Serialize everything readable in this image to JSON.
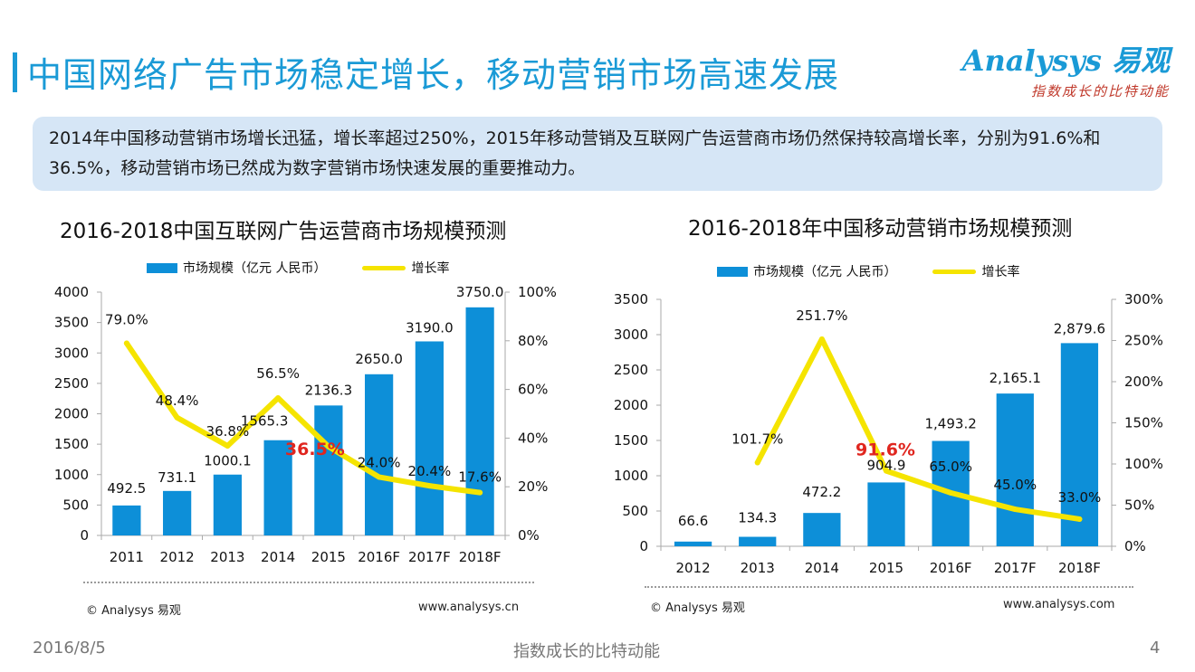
{
  "header": {
    "title": "中国网络广告市场稳定增长，移动营销市场高速发展",
    "logo": "Analysys 易观",
    "slogan": "指数成长的比特动能"
  },
  "summary": "2014年中国移动营销市场增长迅猛，增长率超过250%，2015年移动营销及互联网广告运营商市场仍然保持较高增长率，分别为91.6%和36.5%，移动营销市场已然成为数字营销市场快速发展的重要推动力。",
  "colors": {
    "accent": "#1a9ad6",
    "bar": "#0d8fd8",
    "line": "#f5e400",
    "highlight": "#e0261f"
  },
  "chart_data": [
    {
      "type": "bar",
      "title": "2016-2018中国互联网广告运营商市场规模预测",
      "categories": [
        "2011",
        "2012",
        "2013",
        "2014",
        "2015",
        "2016F",
        "2017F",
        "2018F"
      ],
      "series": [
        {
          "name": "市场规模（亿元 人民币）",
          "type": "bar",
          "axis": "left",
          "values": [
            492.5,
            731.1,
            1000.1,
            1565.3,
            2136.3,
            2650.0,
            3190.0,
            3750.0
          ],
          "labels": [
            "492.5",
            "731.1",
            "1000.1",
            "1565.3",
            "2136.3",
            "2650.0",
            "3190.0",
            "3750.0"
          ]
        },
        {
          "name": "增长率",
          "type": "line",
          "axis": "right",
          "values": [
            79.0,
            48.4,
            36.8,
            56.5,
            36.5,
            24.0,
            20.4,
            17.6
          ],
          "labels": [
            "79.0%",
            "48.4%",
            "36.8%",
            "56.5%",
            "36.5%",
            "24.0%",
            "20.4%",
            "17.6%"
          ],
          "highlight_index": 4
        }
      ],
      "yleft": {
        "min": 0,
        "max": 4000,
        "ticks": [
          "0",
          "500",
          "1000",
          "1500",
          "2000",
          "2500",
          "3000",
          "3500",
          "4000"
        ]
      },
      "yright": {
        "min": 0,
        "max": 100,
        "ticks": [
          "0%",
          "20%",
          "40%",
          "60%",
          "80%",
          "100%"
        ]
      },
      "source_left": "© Analysys 易观",
      "source_right": "www.analysys.cn"
    },
    {
      "type": "bar",
      "title": "2016-2018年中国移动营销市场规模预测",
      "categories": [
        "2012",
        "2013",
        "2014",
        "2015",
        "2016F",
        "2017F",
        "2018F"
      ],
      "series": [
        {
          "name": "市场规模（亿元 人民币）",
          "type": "bar",
          "axis": "left",
          "values": [
            66.6,
            134.3,
            472.2,
            904.9,
            1493.2,
            2165.1,
            2879.6
          ],
          "labels": [
            "66.6",
            "134.3",
            "472.2",
            "904.9",
            "1,493.2",
            "2,165.1",
            "2,879.6"
          ]
        },
        {
          "name": "增长率",
          "type": "line",
          "axis": "right",
          "values": [
            null,
            101.7,
            251.7,
            91.6,
            65.0,
            45.0,
            33.0
          ],
          "labels": [
            "",
            "101.7%",
            "251.7%",
            "91.6%",
            "65.0%",
            "45.0%",
            "33.0%"
          ],
          "highlight_index": 3
        }
      ],
      "yleft": {
        "min": 0,
        "max": 3500,
        "ticks": [
          "0",
          "500",
          "1000",
          "1500",
          "2000",
          "2500",
          "3000",
          "3500"
        ]
      },
      "yright": {
        "min": 0,
        "max": 300,
        "ticks": [
          "0%",
          "50%",
          "100%",
          "150%",
          "200%",
          "250%",
          "300%"
        ]
      },
      "source_left": "© Analysys 易观",
      "source_right": "www.analysys.com"
    }
  ],
  "footer": {
    "date": "2016/8/5",
    "slogan": "指数成长的比特动能",
    "page": "4"
  }
}
